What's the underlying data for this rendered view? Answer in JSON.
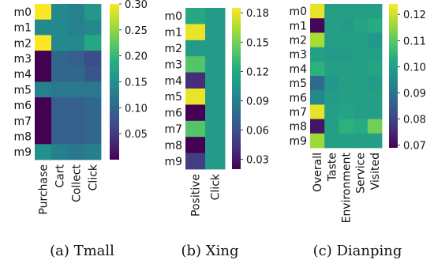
{
  "colormap": "viridis",
  "chart_data": [
    {
      "type": "heatmap",
      "caption": "(a) Tmall",
      "rows": [
        "m0",
        "m1",
        "m2",
        "m3",
        "m4",
        "m5",
        "m6",
        "m7",
        "m8",
        "m9"
      ],
      "columns": [
        "Purchase",
        "Cart",
        "Collect",
        "Click"
      ],
      "values": [
        [
          0.3,
          0.14,
          0.13,
          0.16
        ],
        [
          0.14,
          0.14,
          0.13,
          0.14
        ],
        [
          0.3,
          0.14,
          0.14,
          0.18
        ],
        [
          0.0,
          0.1,
          0.09,
          0.07
        ],
        [
          0.0,
          0.1,
          0.1,
          0.08
        ],
        [
          0.13,
          0.12,
          0.12,
          0.12
        ],
        [
          0.0,
          0.09,
          0.09,
          0.1
        ],
        [
          0.0,
          0.09,
          0.09,
          0.1
        ],
        [
          0.0,
          0.09,
          0.09,
          0.1
        ],
        [
          0.15,
          0.13,
          0.12,
          0.13
        ]
      ],
      "colorbar": {
        "range": [
          0.0,
          0.3
        ],
        "ticks": [
          "0.30",
          "0.25",
          "0.20",
          "0.15",
          "0.10",
          "0.05"
        ],
        "tick_values": [
          0.3,
          0.25,
          0.2,
          0.15,
          0.1,
          0.05
        ]
      }
    },
    {
      "type": "heatmap",
      "caption": "(b) Xing",
      "rows": [
        "m0",
        "m1",
        "m2",
        "m3",
        "m4",
        "m5",
        "m6",
        "m7",
        "m8",
        "m9"
      ],
      "columns": [
        "Positive",
        "Click"
      ],
      "values": [
        [
          0.12,
          0.11
        ],
        [
          0.18,
          0.11
        ],
        [
          0.11,
          0.11
        ],
        [
          0.14,
          0.11
        ],
        [
          0.04,
          0.11
        ],
        [
          0.18,
          0.11
        ],
        [
          0.02,
          0.11
        ],
        [
          0.14,
          0.11
        ],
        [
          0.02,
          0.11
        ],
        [
          0.05,
          0.11
        ]
      ],
      "colorbar": {
        "range": [
          0.02,
          0.185
        ],
        "ticks": [
          "0.18",
          "0.15",
          "0.12",
          "0.09",
          "0.06",
          "0.03"
        ],
        "tick_values": [
          0.18,
          0.15,
          0.12,
          0.09,
          0.06,
          0.03
        ]
      }
    },
    {
      "type": "heatmap",
      "caption": "(c) Dianping",
      "rows": [
        "m0",
        "m1",
        "m2",
        "m3",
        "m4",
        "m5",
        "m6",
        "m7",
        "m8",
        "m9"
      ],
      "columns": [
        "Overall",
        "Taste",
        "Environment",
        "Service",
        "Visited"
      ],
      "values": [
        [
          0.122,
          0.1,
          0.1,
          0.1,
          0.1
        ],
        [
          0.07,
          0.1,
          0.099,
          0.101,
          0.103
        ],
        [
          0.117,
          0.1,
          0.1,
          0.1,
          0.098
        ],
        [
          0.1,
          0.099,
          0.099,
          0.1,
          0.1
        ],
        [
          0.104,
          0.1,
          0.1,
          0.1,
          0.101
        ],
        [
          0.088,
          0.098,
          0.1,
          0.1,
          0.099
        ],
        [
          0.095,
          0.099,
          0.1,
          0.1,
          0.1
        ],
        [
          0.122,
          0.1,
          0.101,
          0.1,
          0.1
        ],
        [
          0.072,
          0.1,
          0.104,
          0.103,
          0.112
        ],
        [
          0.116,
          0.1,
          0.1,
          0.1,
          0.1
        ]
      ],
      "colorbar": {
        "range": [
          0.069,
          0.124
        ],
        "ticks": [
          "0.12",
          "0.11",
          "0.10",
          "0.09",
          "0.08",
          "0.07"
        ],
        "tick_values": [
          0.12,
          0.11,
          0.1,
          0.09,
          0.08,
          0.07
        ]
      }
    }
  ]
}
